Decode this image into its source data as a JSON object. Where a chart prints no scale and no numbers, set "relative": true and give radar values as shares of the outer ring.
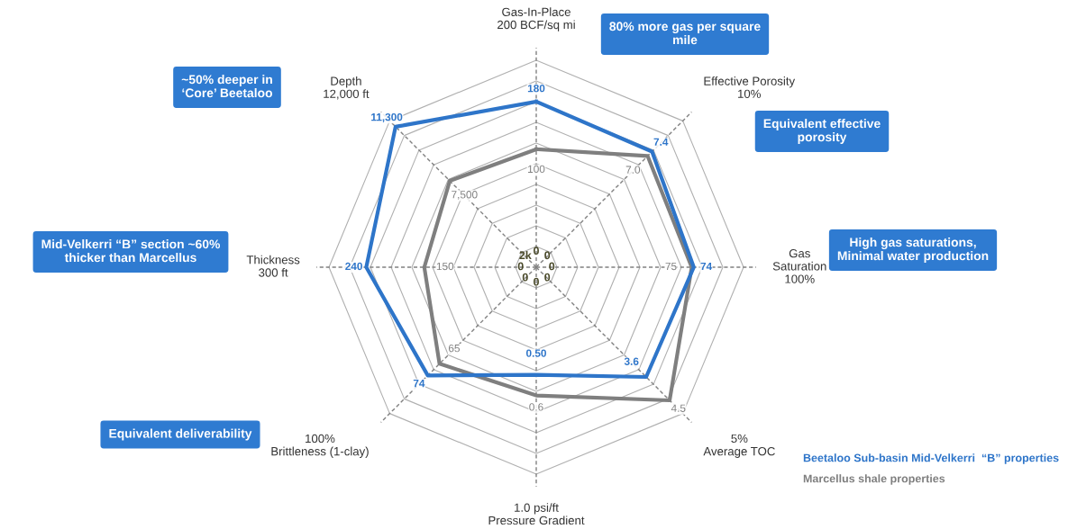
{
  "chart_data": {
    "type": "radar",
    "relative": true,
    "legend": "bottom right",
    "categories": [
      "Gas-In-Place\n200 BCF/sq mi",
      "Effective Porosity\n10%",
      "Gas\nSaturation\n100%",
      "5%\nAverage TOC",
      "1.0 psi/ft\nPressure Gradient",
      "100%\nBrittleness (1-clay)",
      "Thickness\n300 ft",
      "Depth\n12,000 ft"
    ],
    "series": [
      {
        "name": "Beetaloo Sub-basin Mid-Velkerri  “B” properties",
        "color": "#2e75c9",
        "values": [
          0.8,
          0.79,
          0.76,
          0.75,
          0.52,
          0.74,
          0.82,
          0.96
        ]
      },
      {
        "name": "Marcellus shale properties",
        "color": "#7f7f7f",
        "values": [
          0.57,
          0.76,
          0.75,
          0.91,
          0.62,
          0.66,
          0.54,
          0.59
        ]
      }
    ],
    "annotations": [
      "80% more gas per square\nmile",
      "~50% deeper in\n‘Core’ Beetaloo",
      "Equivalent effective\nporosity",
      "High gas saturations,\nMinimal water production",
      "Mid-Velkerri “B” section ~60%\nthicker than Marcellus",
      "Equivalent deliverability",
      "0",
      "0",
      "0",
      "0",
      "0",
      "0",
      "0",
      "2k",
      "180",
      "7.4",
      "74",
      "3.6",
      "0.50",
      "74",
      "240",
      "11,300",
      "100",
      "7.0",
      "75",
      "4.5",
      "0.6",
      "65",
      "150",
      "7,500"
    ]
  }
}
